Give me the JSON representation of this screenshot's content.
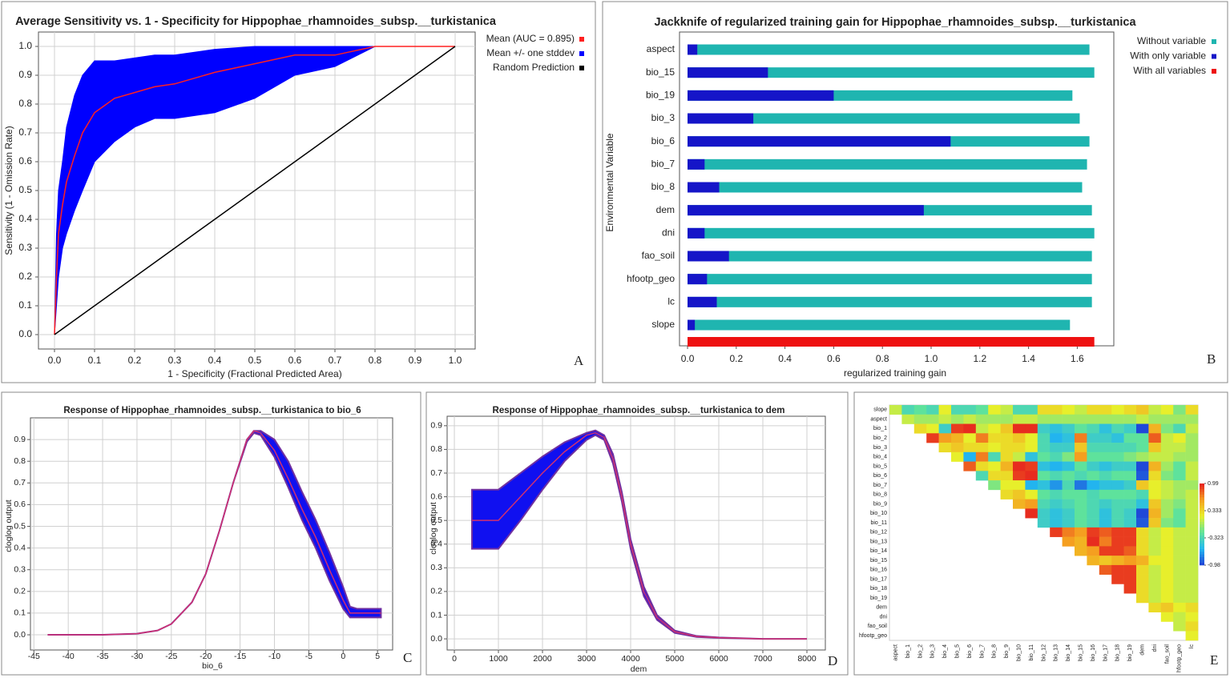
{
  "chart_data": [
    {
      "type": "line",
      "panel_label": "A",
      "title": "Average Sensitivity vs. 1 - Specificity for Hippophae_rhamnoides_subsp.__turkistanica",
      "xlabel": "1 - Specificity (Fractional Predicted Area)",
      "ylabel": "Sensitivity (1 - Omission Rate)",
      "xlim": [
        -0.04,
        1.05
      ],
      "ylim": [
        -0.05,
        1.05
      ],
      "xticks": [
        {
          "value": 0,
          "label": "0.0"
        },
        0.1,
        0.2,
        0.3,
        0.4,
        0.5,
        0.6,
        0.7,
        0.8,
        0.9,
        {
          "value": 1,
          "label": "1.0"
        }
      ],
      "yticks": [
        {
          "value": 0,
          "label": "0.0"
        },
        0.1,
        0.2,
        0.3,
        0.4,
        0.5,
        0.6,
        0.7,
        0.8,
        0.9,
        {
          "value": 1,
          "label": "1.0"
        }
      ],
      "grid": true,
      "legend": "upper right",
      "series": [
        {
          "name": "Mean (AUC = 0.895)",
          "color": "#ff2020",
          "x": [
            0,
            0.005,
            0.01,
            0.02,
            0.03,
            0.05,
            0.07,
            0.1,
            0.15,
            0.2,
            0.25,
            0.3,
            0.4,
            0.5,
            0.6,
            0.7,
            0.8,
            0.9,
            1.0
          ],
          "values": [
            0,
            0.2,
            0.35,
            0.45,
            0.53,
            0.62,
            0.7,
            0.77,
            0.82,
            0.84,
            0.86,
            0.87,
            0.91,
            0.94,
            0.97,
            0.97,
            1.0,
            1.0,
            1.0
          ]
        },
        {
          "name": "Mean +/- one stddev",
          "color": "#0000ff",
          "x": [
            0,
            0.005,
            0.01,
            0.02,
            0.03,
            0.05,
            0.07,
            0.1,
            0.15,
            0.2,
            0.25,
            0.3,
            0.4,
            0.5,
            0.6,
            0.7,
            0.8,
            0.9,
            1.0
          ],
          "lower": [
            0,
            0.1,
            0.2,
            0.3,
            0.35,
            0.43,
            0.5,
            0.6,
            0.67,
            0.72,
            0.75,
            0.75,
            0.77,
            0.82,
            0.9,
            0.93,
            1.0,
            1.0,
            1.0
          ],
          "upper": [
            0,
            0.35,
            0.5,
            0.6,
            0.72,
            0.83,
            0.9,
            0.95,
            0.95,
            0.96,
            0.97,
            0.97,
            0.99,
            1.0,
            1.0,
            1.0,
            1.0,
            1.0,
            1.0
          ]
        },
        {
          "name": "Random Prediction",
          "color": "#000000",
          "x": [
            0,
            1
          ],
          "values": [
            0,
            1
          ]
        }
      ]
    },
    {
      "type": "barh",
      "panel_label": "B",
      "title": "Jackknife of regularized training gain for Hippophae_rhamnoides_subsp.__turkistanica",
      "xlabel": "regularized training gain",
      "ylabel": "Environmental Variable",
      "xlim": [
        -0.033,
        1.75
      ],
      "xticks": [
        {
          "value": 0,
          "label": "0.0"
        },
        0.2,
        0.4,
        0.6,
        0.8,
        {
          "value": 1,
          "label": "1.0"
        },
        1.2,
        1.4,
        1.6
      ],
      "grid": false,
      "legend": "upper right",
      "categories": [
        "aspect",
        "bio_15",
        "bio_19",
        "bio_3",
        "bio_6",
        "bio_7",
        "bio_8",
        "dem",
        "dni",
        "fao_soil",
        "hfootp_geo",
        "lc",
        "slope"
      ],
      "series": [
        {
          "name": "Without variable",
          "color": "#1fb5b0",
          "values": [
            1.65,
            1.67,
            1.58,
            1.61,
            1.65,
            1.64,
            1.62,
            1.66,
            1.67,
            1.66,
            1.66,
            1.66,
            1.57
          ]
        },
        {
          "name": "With only variable",
          "color": "#1515c8",
          "values": [
            0.04,
            0.33,
            0.6,
            0.27,
            1.08,
            0.07,
            0.13,
            0.97,
            0.07,
            0.17,
            0.08,
            0.12,
            0.03
          ]
        }
      ],
      "all_variables": {
        "name": "With all variables",
        "color": "#ee1111",
        "value": 1.67
      }
    },
    {
      "type": "line",
      "panel_label": "C",
      "title": "Response of Hippophae_rhamnoides_subsp.__turkistanica to bio_6",
      "xlabel": "bio_6",
      "ylabel": "cloglog output",
      "xlim": [
        -45.5,
        7.2
      ],
      "ylim": [
        -0.07,
        1.0
      ],
      "xticks": [
        -45,
        -40,
        -35,
        -30,
        -25,
        -20,
        -15,
        -10,
        -5,
        0,
        5
      ],
      "yticks": [
        {
          "value": 0,
          "label": "0.0"
        },
        0.1,
        0.2,
        0.3,
        0.4,
        0.5,
        0.6,
        0.7,
        0.8,
        0.9
      ],
      "grid": true,
      "series": [
        {
          "color": "#1010f0",
          "edgecolor": "#7030a0",
          "x": [
            -43,
            -35,
            -30,
            -27,
            -25,
            -22,
            -20,
            -18,
            -16,
            -14,
            -13,
            -12,
            -10,
            -8,
            -6,
            -4,
            -2,
            0,
            1,
            2,
            5.5
          ],
          "lower": [
            0,
            0,
            0.005,
            0.02,
            0.05,
            0.15,
            0.28,
            0.48,
            0.7,
            0.89,
            0.93,
            0.92,
            0.82,
            0.68,
            0.53,
            0.4,
            0.25,
            0.12,
            0.08,
            0.08,
            0.08
          ],
          "upper": [
            0,
            0,
            0.005,
            0.02,
            0.05,
            0.15,
            0.28,
            0.48,
            0.7,
            0.9,
            0.94,
            0.94,
            0.9,
            0.8,
            0.66,
            0.53,
            0.38,
            0.22,
            0.13,
            0.12,
            0.12
          ]
        },
        {
          "color": "#d03070",
          "x": [
            -43,
            -35,
            -30,
            -27,
            -25,
            -22,
            -20,
            -18,
            -16,
            -14,
            -13,
            -12,
            -10,
            -8,
            -6,
            -4,
            -2,
            0,
            1,
            2,
            5.5
          ],
          "values": [
            0,
            0,
            0.005,
            0.02,
            0.05,
            0.15,
            0.28,
            0.48,
            0.7,
            0.9,
            0.94,
            0.93,
            0.85,
            0.72,
            0.58,
            0.45,
            0.3,
            0.16,
            0.1,
            0.1,
            0.1
          ]
        }
      ]
    },
    {
      "type": "line",
      "panel_label": "D",
      "title": "Response of Hippophae_rhamnoides_subsp.__turkistanica to dem",
      "xlabel": "dem",
      "ylabel": "cloglog output",
      "xlim": [
        -164,
        8418
      ],
      "ylim": [
        -0.047,
        0.94
      ],
      "xticks": [
        0,
        1000,
        2000,
        3000,
        4000,
        5000,
        6000,
        7000,
        8000
      ],
      "yticks": [
        {
          "value": 0,
          "label": "0.0"
        },
        0.1,
        0.2,
        0.3,
        0.4,
        0.5,
        0.6,
        0.7,
        0.8,
        0.9
      ],
      "grid": true,
      "series": [
        {
          "color": "#1010f0",
          "edgecolor": "#7030a0",
          "x": [
            400,
            1000,
            1500,
            2000,
            2500,
            3000,
            3200,
            3400,
            3600,
            3800,
            4000,
            4300,
            4600,
            5000,
            5500,
            6000,
            7000,
            8000
          ],
          "lower": [
            0.38,
            0.38,
            0.5,
            0.63,
            0.75,
            0.84,
            0.86,
            0.84,
            0.74,
            0.58,
            0.38,
            0.18,
            0.08,
            0.025,
            0.008,
            0.004,
            0,
            0
          ],
          "upper": [
            0.63,
            0.63,
            0.7,
            0.77,
            0.83,
            0.87,
            0.88,
            0.86,
            0.78,
            0.62,
            0.42,
            0.22,
            0.1,
            0.035,
            0.012,
            0.006,
            0,
            0
          ]
        },
        {
          "color": "#d03070",
          "x": [
            400,
            1000,
            1500,
            2000,
            2500,
            3000,
            3200,
            3400,
            3600,
            3800,
            4000,
            4300,
            4600,
            5000,
            5500,
            6000,
            7000,
            8000
          ],
          "values": [
            0.5,
            0.5,
            0.6,
            0.7,
            0.79,
            0.86,
            0.87,
            0.85,
            0.76,
            0.6,
            0.4,
            0.2,
            0.09,
            0.03,
            0.01,
            0.005,
            0,
            0
          ]
        }
      ]
    },
    {
      "type": "heatmap",
      "panel_label": "E",
      "row_labels": [
        "slope",
        "aspect",
        "bio_1",
        "bio_2",
        "bio_3",
        "bio_4",
        "bio_5",
        "bio_6",
        "bio_7",
        "bio_8",
        "bio_9",
        "bio_10",
        "bio_11",
        "bio_12",
        "bio_13",
        "bio_14",
        "bio_15",
        "bio_16",
        "bio_17",
        "bio_18",
        "bio_19",
        "dem",
        "dni",
        "fao_soil",
        "hfootp_geo"
      ],
      "col_labels": [
        "aspect",
        "bio_1",
        "bio_2",
        "bio_3",
        "bio_4",
        "bio_5",
        "bio_6",
        "bio_7",
        "bio_8",
        "bio_9",
        "bio_10",
        "bio_11",
        "bio_12",
        "bio_13",
        "bio_14",
        "bio_15",
        "bio_16",
        "bio_17",
        "bio_18",
        "bio_19",
        "dem",
        "dni",
        "fao_soil",
        "hfootp_geo",
        "lc"
      ],
      "zlim": [
        -0.98,
        0.99
      ],
      "colorbar_ticks": [
        0.99,
        0.333,
        -0.323,
        -0.98
      ],
      "colorscale": [
        "#1f3fd6",
        "#22b8f0",
        "#5fe39a",
        "#e8ef2a",
        "#f5a020",
        "#e51f1f"
      ],
      "values": [
        [
          0.1,
          -0.3,
          -0.2,
          -0.3,
          0.2,
          -0.3,
          -0.3,
          -0.2,
          0.2,
          0.1,
          -0.3,
          -0.3,
          0.3,
          0.3,
          0.2,
          0.1,
          0.3,
          0.3,
          0.2,
          0.3,
          0.4,
          0.1,
          0.2,
          -0.1,
          0.3
        ],
        [
          0.1,
          0,
          0,
          0.1,
          0,
          0.1,
          0,
          0,
          0,
          0.1,
          0.1,
          0,
          0,
          0,
          0,
          0,
          0,
          0,
          0,
          0.1,
          0,
          0,
          0,
          0
        ],
        [
          0.3,
          0.2,
          -0.4,
          0.9,
          0.95,
          0.1,
          0.2,
          0.4,
          0.95,
          0.95,
          -0.4,
          -0.5,
          -0.4,
          -0.2,
          -0.3,
          -0.5,
          -0.3,
          -0.4,
          -0.95,
          0.5,
          -0.1,
          -0.3,
          0.1
        ],
        [
          0.9,
          0.6,
          0.5,
          0.2,
          0.7,
          0.3,
          0.3,
          0.4,
          0.2,
          -0.3,
          -0.6,
          -0.5,
          0.7,
          -0.4,
          -0.4,
          -0.5,
          -0.2,
          -0.2,
          0.8,
          0.1,
          0.2,
          0
        ],
        [
          0.3,
          0.4,
          0.3,
          0.3,
          0.2,
          0.3,
          0.3,
          0.2,
          -0.3,
          -0.4,
          -0.4,
          0.4,
          -0.3,
          -0.3,
          -0.3,
          -0.3,
          -0.2,
          0.4,
          0.1,
          0.1,
          0
        ],
        [
          0.2,
          -0.6,
          0.7,
          -0.3,
          0.3,
          0.1,
          -0.5,
          -0.2,
          -0.3,
          -0.1,
          0.6,
          -0.2,
          -0.2,
          -0.2,
          -0.1,
          0,
          0.1,
          0.1,
          0,
          0
        ],
        [
          0.8,
          0.3,
          0.2,
          0.5,
          0.95,
          0.9,
          -0.5,
          -0.6,
          -0.5,
          -0.2,
          -0.4,
          -0.5,
          -0.4,
          -0.4,
          -0.95,
          0.5,
          0,
          -0.2,
          0.1
        ],
        [
          -0.3,
          0.3,
          0.3,
          0.9,
          0.95,
          -0.2,
          -0.3,
          -0.2,
          -0.3,
          -0.2,
          -0.3,
          -0.2,
          -0.2,
          -0.9,
          0.3,
          -0.1,
          -0.2,
          0.1
        ],
        [
          -0.1,
          0.2,
          0.2,
          -0.6,
          -0.5,
          -0.7,
          -0.3,
          -0.8,
          -0.6,
          -0.5,
          -0.5,
          -0.4,
          0.4,
          0.2,
          0.1,
          0,
          0
        ],
        [
          0.3,
          0.4,
          0.2,
          -0.2,
          -0.3,
          -0.2,
          -0.2,
          -0.3,
          -0.2,
          -0.2,
          -0.2,
          -0.3,
          0.2,
          0.1,
          0,
          0.1
        ],
        [
          0.5,
          0.6,
          -0.3,
          -0.4,
          -0.3,
          -0.2,
          -0.3,
          -0.4,
          -0.3,
          -0.3,
          -0.5,
          0.4,
          0,
          -0.1,
          0.1
        ],
        [
          0.95,
          -0.4,
          -0.5,
          -0.4,
          -0.2,
          -0.3,
          -0.5,
          -0.3,
          -0.4,
          -0.95,
          0.5,
          0,
          -0.2,
          0.1
        ],
        [
          -0.4,
          -0.5,
          -0.4,
          -0.2,
          -0.3,
          -0.5,
          -0.3,
          -0.4,
          -0.9,
          0.4,
          -0.1,
          -0.2,
          0.1
        ],
        [
          0.9,
          0.7,
          0.6,
          0.9,
          0.8,
          0.9,
          0.9,
          0.3,
          0.1,
          0.2,
          0.1,
          0.1
        ],
        [
          0.6,
          0.5,
          0.95,
          0.7,
          0.9,
          0.9,
          0.3,
          0.1,
          0.2,
          0.1,
          0.1
        ],
        [
          0.5,
          0.6,
          0.9,
          0.9,
          0.8,
          0.3,
          0.1,
          0.2,
          0.1,
          0.1
        ],
        [
          0.5,
          0.4,
          0.5,
          0.6,
          0.5,
          0.2,
          0.2,
          0.1,
          0.1
        ],
        [
          0.8,
          0.9,
          0.9,
          0.3,
          0.1,
          0.2,
          0.1,
          0.1
        ],
        [
          0.9,
          0.9,
          0.3,
          0.1,
          0.2,
          0.1,
          0.1
        ],
        [
          0.9,
          0.3,
          0.1,
          0.2,
          0.1,
          0.1
        ],
        [
          0.3,
          0.1,
          0.2,
          0.1,
          0.1
        ],
        [
          0.3,
          0.4,
          0.2,
          0.3
        ],
        [
          0.2,
          0.1,
          0.2
        ],
        [
          0.1,
          0.3
        ],
        [
          0.2
        ]
      ]
    }
  ]
}
